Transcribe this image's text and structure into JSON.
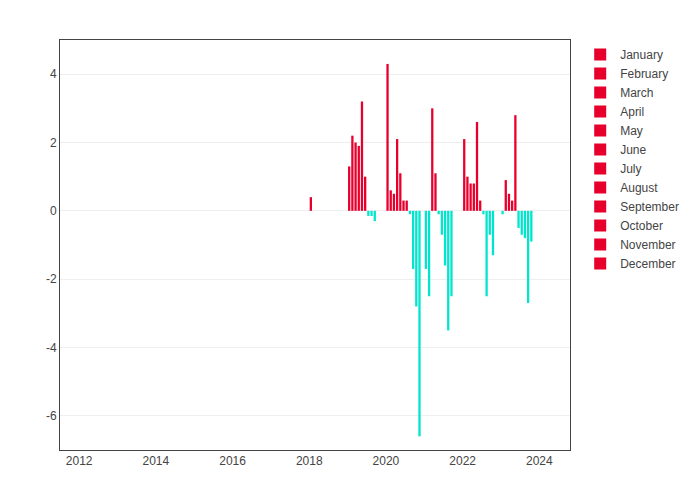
{
  "chart_data": {
    "type": "bar",
    "xlim": [
      2011.5,
      2024.8
    ],
    "xticks": [
      2012,
      2014,
      2016,
      2018,
      2020,
      2022,
      2024
    ],
    "ylim": [
      -7,
      5
    ],
    "yticks": [
      -6,
      -4,
      -2,
      0,
      2,
      4
    ],
    "grid": true,
    "legend": "right",
    "series": [
      {
        "name": "January",
        "color": "#e8002d",
        "x": [
          2018.0416666666667,
          2019.0416666666667,
          2020.0416666666667,
          2021.0416666666667,
          2022.0416666666667,
          2023.0416666666667
        ],
        "values": [
          0.4,
          1.3,
          4.3,
          -1.7,
          2.1,
          -0.1
        ],
        "colors": [
          "#e8002d",
          "#e8002d",
          "#e8002d",
          "#00e5cc",
          "#e8002d",
          "#00e5cc"
        ]
      },
      {
        "name": "February",
        "color": "#e8002d",
        "x": [
          2019.125,
          2020.125,
          2021.125,
          2022.125,
          2023.125
        ],
        "values": [
          2.2,
          0.6,
          -2.5,
          1.0,
          0.9
        ],
        "colors": [
          "#e8002d",
          "#e8002d",
          "#00e5cc",
          "#e8002d",
          "#e8002d"
        ]
      },
      {
        "name": "March",
        "color": "#e8002d",
        "x": [
          2019.2083333333333,
          2020.2083333333333,
          2021.2083333333333,
          2022.2083333333333,
          2023.2083333333333
        ],
        "values": [
          2.0,
          0.5,
          3.0,
          0.8,
          0.5
        ],
        "colors": [
          "#e8002d",
          "#e8002d",
          "#e8002d",
          "#e8002d",
          "#e8002d"
        ]
      },
      {
        "name": "April",
        "color": "#e8002d",
        "x": [
          2019.2916666666667,
          2020.2916666666667,
          2021.2916666666667,
          2022.2916666666667,
          2023.2916666666667
        ],
        "values": [
          1.9,
          2.1,
          1.1,
          0.8,
          0.3
        ],
        "colors": [
          "#e8002d",
          "#e8002d",
          "#e8002d",
          "#e8002d",
          "#e8002d"
        ]
      },
      {
        "name": "May",
        "color": "#e8002d",
        "x": [
          2019.375,
          2020.375,
          2021.375,
          2022.375,
          2023.375
        ],
        "values": [
          3.2,
          1.1,
          -0.1,
          2.6,
          2.8
        ],
        "colors": [
          "#e8002d",
          "#e8002d",
          "#00e5cc",
          "#e8002d",
          "#e8002d"
        ]
      },
      {
        "name": "June",
        "color": "#e8002d",
        "x": [
          2019.4583333333333,
          2020.4583333333333,
          2021.4583333333333,
          2022.4583333333333,
          2023.4583333333333
        ],
        "values": [
          1.0,
          0.3,
          -0.7,
          0.3,
          -0.5
        ],
        "colors": [
          "#e8002d",
          "#e8002d",
          "#00e5cc",
          "#e8002d",
          "#00e5cc"
        ]
      },
      {
        "name": "July",
        "color": "#e8002d",
        "x": [
          2019.5416666666667,
          2020.5416666666667,
          2021.5416666666667,
          2022.5416666666667,
          2023.5416666666667
        ],
        "values": [
          -0.15,
          0.3,
          -1.6,
          -0.1,
          -0.7
        ],
        "colors": [
          "#00e5cc",
          "#e8002d",
          "#00e5cc",
          "#00e5cc",
          "#00e5cc"
        ]
      },
      {
        "name": "August",
        "color": "#e8002d",
        "x": [
          2019.625,
          2020.625,
          2021.625,
          2022.625,
          2023.625
        ],
        "values": [
          -0.15,
          -0.1,
          -3.5,
          -2.5,
          -0.8
        ],
        "colors": [
          "#00e5cc",
          "#00e5cc",
          "#00e5cc",
          "#00e5cc",
          "#00e5cc"
        ]
      },
      {
        "name": "September",
        "color": "#e8002d",
        "x": [
          2019.7083333333333,
          2020.7083333333333,
          2021.7083333333333,
          2022.7083333333333,
          2023.7083333333333
        ],
        "values": [
          -0.3,
          -1.7,
          -2.5,
          -0.7,
          -2.7
        ],
        "colors": [
          "#00e5cc",
          "#00e5cc",
          "#00e5cc",
          "#00e5cc",
          "#00e5cc"
        ]
      },
      {
        "name": "October",
        "color": "#e8002d",
        "x": [
          2020.7916666666667,
          2022.7916666666667,
          2023.7916666666667
        ],
        "values": [
          -2.8,
          -1.3,
          -0.9
        ],
        "colors": [
          "#00e5cc",
          "#00e5cc",
          "#00e5cc"
        ]
      },
      {
        "name": "November",
        "color": "#e8002d",
        "x": [
          2020.875
        ],
        "values": [
          -6.6
        ],
        "colors": [
          "#00e5cc"
        ]
      },
      {
        "name": "December",
        "color": "#e8002d",
        "x": [],
        "values": [],
        "colors": []
      }
    ]
  }
}
